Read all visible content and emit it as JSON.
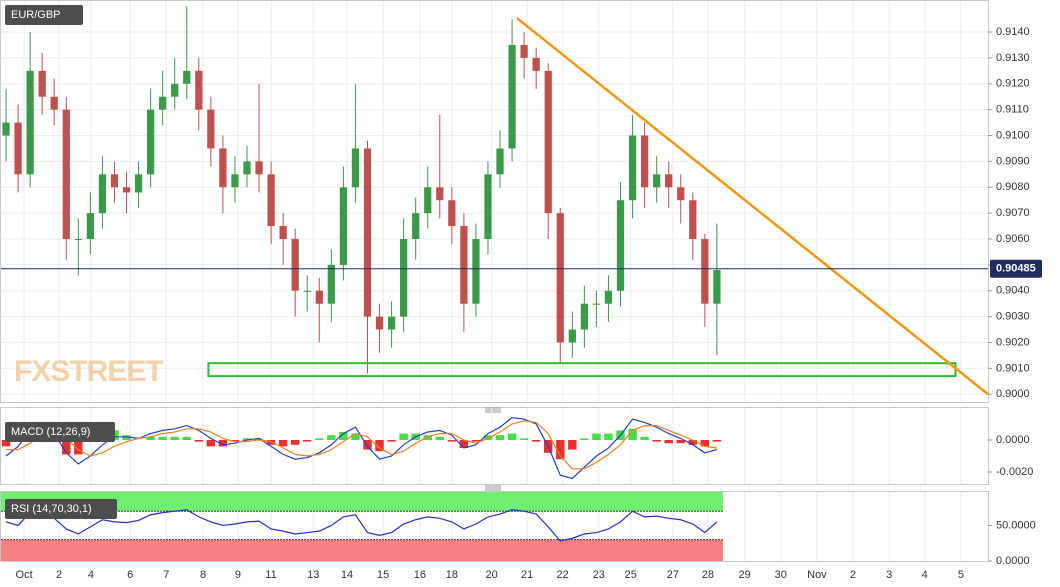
{
  "chart_data": [
    {
      "type": "candlestick",
      "title": "EUR/GBP",
      "watermark": "FXSTREET",
      "up_color": "#3a9a4a",
      "down_color": "#c0504d",
      "xlim": [
        0,
        82
      ],
      "xticks": [
        {
          "value": 2.0,
          "label": "Oct"
        },
        {
          "value": 4.9,
          "label": "2"
        },
        {
          "value": 7.55,
          "label": "4"
        },
        {
          "value": 10.8,
          "label": "6"
        },
        {
          "value": 13.8,
          "label": "7"
        },
        {
          "value": 16.85,
          "label": "8"
        },
        {
          "value": 19.75,
          "label": "9"
        },
        {
          "value": 22.5,
          "label": "11"
        },
        {
          "value": 26,
          "label": "13"
        },
        {
          "value": 28.8,
          "label": "14"
        },
        {
          "value": 31.8,
          "label": "15"
        },
        {
          "value": 34.85,
          "label": "16"
        },
        {
          "value": 37.5,
          "label": "18"
        },
        {
          "value": 40.8,
          "label": "20"
        },
        {
          "value": 43.75,
          "label": "21"
        },
        {
          "value": 46.7,
          "label": "22"
        },
        {
          "value": 49.7,
          "label": "23"
        },
        {
          "value": 52.35,
          "label": "25"
        },
        {
          "value": 55.85,
          "label": "27"
        },
        {
          "value": 58.75,
          "label": "28"
        },
        {
          "value": 61.8,
          "label": "29"
        },
        {
          "value": 64.8,
          "label": "30"
        },
        {
          "value": 67.8,
          "label": "Nov"
        },
        {
          "value": 70.8,
          "label": "2"
        },
        {
          "value": 73.8,
          "label": "3"
        },
        {
          "value": 76.75,
          "label": "4"
        },
        {
          "value": 79.75,
          "label": "5"
        }
      ],
      "ylim": [
        0.8997,
        0.9152
      ],
      "yticks": [
        {
          "value": 0.9,
          "label": "0.9000"
        },
        {
          "value": 0.901,
          "label": "0.9010"
        },
        {
          "value": 0.902,
          "label": "0.9020"
        },
        {
          "value": 0.903,
          "label": "0.9030"
        },
        {
          "value": 0.904,
          "label": "0.9040"
        },
        {
          "value": 0.905,
          "label": "0.9050"
        },
        {
          "value": 0.906,
          "label": "0.9060"
        },
        {
          "value": 0.907,
          "label": "0.9070"
        },
        {
          "value": 0.908,
          "label": "0.9080"
        },
        {
          "value": 0.909,
          "label": "0.9090"
        },
        {
          "value": 0.91,
          "label": "0.9100"
        },
        {
          "value": 0.911,
          "label": "0.9110"
        },
        {
          "value": 0.912,
          "label": "0.9120"
        },
        {
          "value": 0.913,
          "label": "0.9130"
        },
        {
          "value": 0.914,
          "label": "0.9140"
        }
      ],
      "grid": true,
      "last_price": 0.90485,
      "last_price_color": "#1e2d5c",
      "open": [
        0.91,
        0.9105,
        0.9085,
        0.9125,
        0.9115,
        0.911,
        0.906,
        0.906,
        0.907,
        0.9085,
        0.908,
        0.9078,
        0.9085,
        0.911,
        0.9115,
        0.912,
        0.9125,
        0.911,
        0.9095,
        0.908,
        0.9085,
        0.909,
        0.9085,
        0.9065,
        0.906,
        0.904,
        0.904,
        0.9035,
        0.905,
        0.908,
        0.9095,
        0.903,
        0.9025,
        0.903,
        0.906,
        0.907,
        0.908,
        0.9075,
        0.9065,
        0.9035,
        0.906,
        0.9085,
        0.9095,
        0.9135,
        0.913,
        0.9125,
        0.907,
        0.902,
        0.9025,
        0.9035,
        0.9035,
        0.904,
        0.9075,
        0.91,
        0.908,
        0.9085,
        0.908,
        0.9075,
        0.906,
        0.9035
      ],
      "high": [
        0.9118,
        0.9112,
        0.914,
        0.9132,
        0.9122,
        0.9115,
        0.9068,
        0.9078,
        0.9092,
        0.909,
        0.9086,
        0.909,
        0.9118,
        0.9125,
        0.913,
        0.915,
        0.913,
        0.9115,
        0.91,
        0.9092,
        0.9096,
        0.912,
        0.909,
        0.907,
        0.9064,
        0.9046,
        0.9045,
        0.9056,
        0.9088,
        0.912,
        0.9098,
        0.9035,
        0.9036,
        0.9068,
        0.9076,
        0.9088,
        0.9108,
        0.908,
        0.907,
        0.9066,
        0.909,
        0.9102,
        0.9145,
        0.914,
        0.9134,
        0.9128,
        0.9072,
        0.9032,
        0.9042,
        0.904,
        0.9046,
        0.9082,
        0.9108,
        0.9105,
        0.9092,
        0.909,
        0.9085,
        0.9078,
        0.9062,
        0.9066
      ],
      "low": [
        0.909,
        0.9078,
        0.908,
        0.9108,
        0.9104,
        0.9052,
        0.9046,
        0.9054,
        0.9064,
        0.9074,
        0.907,
        0.9072,
        0.908,
        0.9104,
        0.911,
        0.9114,
        0.9102,
        0.9088,
        0.907,
        0.9074,
        0.908,
        0.9078,
        0.9058,
        0.905,
        0.903,
        0.9032,
        0.902,
        0.9028,
        0.9044,
        0.9074,
        0.9008,
        0.9016,
        0.9018,
        0.9024,
        0.9052,
        0.9064,
        0.9068,
        0.9058,
        0.9024,
        0.903,
        0.9054,
        0.908,
        0.909,
        0.9122,
        0.9118,
        0.906,
        0.9012,
        0.9014,
        0.9018,
        0.9026,
        0.9028,
        0.9034,
        0.9068,
        0.9072,
        0.9074,
        0.9072,
        0.9066,
        0.9052,
        0.9026,
        0.9015
      ],
      "close": [
        0.9105,
        0.9085,
        0.9125,
        0.9115,
        0.911,
        0.906,
        0.906,
        0.907,
        0.9085,
        0.908,
        0.9078,
        0.9085,
        0.911,
        0.9115,
        0.912,
        0.9125,
        0.911,
        0.9095,
        0.908,
        0.9085,
        0.909,
        0.9085,
        0.9065,
        0.906,
        0.904,
        0.904,
        0.9035,
        0.905,
        0.908,
        0.9095,
        0.903,
        0.9025,
        0.903,
        0.906,
        0.907,
        0.908,
        0.9075,
        0.9065,
        0.9035,
        0.906,
        0.9085,
        0.9095,
        0.9135,
        0.913,
        0.9125,
        0.907,
        0.902,
        0.9025,
        0.9035,
        0.9035,
        0.904,
        0.9075,
        0.91,
        0.908,
        0.9085,
        0.908,
        0.9075,
        0.906,
        0.9035,
        0.9048
      ],
      "trendline": {
        "x": [
          42.9,
          82
        ],
        "y": [
          0.91454,
          0.9
        ],
        "color": "#f5960f"
      },
      "zone": {
        "x": [
          17.3,
          79.3
        ],
        "y": [
          0.9007,
          0.9012
        ],
        "color": "#2ebd2e"
      }
    },
    {
      "type": "macd",
      "title": "MACD (12,26,9)",
      "ylim": [
        -0.00275,
        0.002
      ],
      "yticks": [
        {
          "value": 0,
          "label": "0.0000"
        },
        {
          "value": -0.002,
          "label": "-0.0020"
        }
      ],
      "up_color": "#44dd44",
      "down_color": "#e83030",
      "series": [
        {
          "color": "#2040d0",
          "values": [
            -0.001,
            -0.0004,
            0.0006,
            0.0008,
            0.0004,
            -0.0008,
            -0.0015,
            -0.001,
            -0.0003,
            0.0002,
            0.0002,
            0.0001,
            0.0004,
            0.0006,
            0.0007,
            0.0009,
            0.0006,
            0.0001,
            -0.0003,
            -0.0002,
            0.0,
            0.0001,
            -0.0004,
            -0.0009,
            -0.0012,
            -0.0011,
            -0.0008,
            -0.0003,
            0.0004,
            0.0008,
            -0.0004,
            -0.0012,
            -0.001,
            -0.0003,
            0.0002,
            0.0005,
            0.0006,
            0.0003,
            -0.0005,
            -0.0003,
            0.0004,
            0.0008,
            0.0014,
            0.0013,
            0.001,
            -0.0004,
            -0.0022,
            -0.0024,
            -0.0017,
            -0.001,
            -0.0005,
            0.0003,
            0.0013,
            0.0011,
            0.0008,
            0.0004,
            0.0001,
            -0.0003,
            -0.0008,
            -0.0006
          ]
        },
        {
          "color": "#f08020",
          "values": [
            -0.0006,
            -0.0006,
            -0.0002,
            0.0003,
            0.0005,
            0.0001,
            -0.0006,
            -0.001,
            -0.0008,
            -0.0004,
            -0.0001,
            0.0001,
            0.0002,
            0.0004,
            0.0005,
            0.0007,
            0.0007,
            0.0005,
            0.0001,
            -0.0001,
            -0.0001,
            0.0,
            -0.0001,
            -0.0005,
            -0.0009,
            -0.001,
            -0.0009,
            -0.0006,
            -0.0001,
            0.0004,
            0.0002,
            -0.0005,
            -0.0009,
            -0.0007,
            -0.0002,
            0.0002,
            0.0004,
            0.0004,
            0.0,
            -0.0002,
            0.0001,
            0.0005,
            0.001,
            0.0012,
            0.0011,
            0.0004,
            -0.001,
            -0.0018,
            -0.0018,
            -0.0014,
            -0.0009,
            -0.0003,
            0.0006,
            0.0009,
            0.0009,
            0.0006,
            0.0003,
            0.0,
            -0.0004,
            -0.0005
          ]
        }
      ],
      "histogram": [
        -0.0004,
        0.0002,
        0.0008,
        0.0005,
        -0.0001,
        -0.0009,
        -0.0009,
        0.0,
        0.0005,
        0.0006,
        0.0003,
        0.0,
        0.0002,
        0.0002,
        0.0002,
        0.0002,
        -0.0001,
        -0.0004,
        -0.0004,
        -0.0001,
        0.0001,
        0.0001,
        -0.0003,
        -0.0004,
        -0.0003,
        -0.0001,
        0.0001,
        0.0003,
        0.0005,
        0.0004,
        -0.0006,
        -0.0007,
        -0.0001,
        0.0004,
        0.0004,
        0.0003,
        0.0002,
        -0.0001,
        -0.0005,
        -0.0001,
        0.0003,
        0.0003,
        0.0004,
        0.0001,
        -0.0001,
        -0.0008,
        -0.0012,
        -0.0006,
        0.0001,
        0.0004,
        0.0004,
        0.0006,
        0.0007,
        0.0002,
        -0.0001,
        -0.0002,
        -0.0002,
        -0.0003,
        -0.0004,
        -0.0001
      ]
    },
    {
      "type": "rsi",
      "title": "RSI (14,70,30,1)",
      "ylim": [
        0,
        97
      ],
      "yticks": [
        {
          "value": 50,
          "label": "50.0000"
        },
        {
          "value": 0,
          "label": "0.0000"
        }
      ],
      "overbought": 70,
      "oversold": 30,
      "overbought_color": "#70ee70",
      "oversold_color": "#f88080",
      "color": "#2030d0",
      "values": [
        55,
        50,
        68,
        65,
        60,
        45,
        38,
        48,
        58,
        55,
        54,
        57,
        65,
        68,
        70,
        72,
        62,
        55,
        50,
        52,
        55,
        56,
        45,
        42,
        38,
        40,
        42,
        50,
        62,
        65,
        40,
        36,
        40,
        52,
        58,
        62,
        60,
        55,
        45,
        52,
        62,
        66,
        72,
        70,
        66,
        48,
        28,
        32,
        38,
        40,
        45,
        55,
        70,
        62,
        63,
        60,
        58,
        52,
        40,
        55
      ]
    }
  ]
}
